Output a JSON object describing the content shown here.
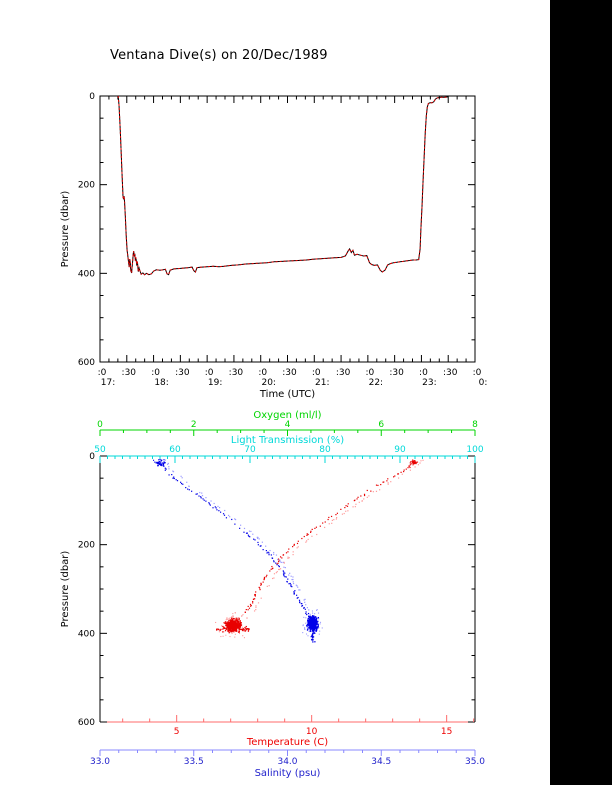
{
  "title": "Ventana Dive(s) on 20/Dec/1989",
  "colors": {
    "panel_black": "#000000",
    "frame_black": "#000000",
    "trace_red": "#e80000",
    "trace_red_light": "#ff9c9c",
    "trace_blue": "#0000e8",
    "trace_blue_light": "#9c9cff",
    "oxygen_green": "#00d400",
    "light_cyan": "#00d9d9",
    "temp_axis_red": "#ee0000",
    "temp_spine_red": "#ff6b6b",
    "salinity_blue": "#2222cc",
    "salinity_spine_blue": "#8888ff"
  },
  "layout": {
    "black_bar_left": 550,
    "black_bar_width": 62
  },
  "chart_data": [
    {
      "type": "line",
      "title": "Ventana Dive(s) on 20/Dec/1989",
      "xlabel": "Time (UTC)",
      "ylabel": "Pressure (dbar)",
      "xlim_hours": [
        17,
        24
      ],
      "ylim": [
        600,
        0
      ],
      "y_ticks": [
        0,
        200,
        400,
        600
      ],
      "y_minor_step": 50,
      "x_major_step_hours": 0.5,
      "x_minor_step_hours": 0.166667,
      "x_minute_labels": [
        ":0",
        ":30"
      ],
      "x_hour_labels": [
        "17:",
        "18:",
        "19:",
        "20:",
        "21:",
        "22:",
        "23:",
        "0:"
      ],
      "grid": false,
      "series": [
        {
          "name": "pressure_vs_time",
          "colors": [
            "#000000",
            "#e80000"
          ],
          "points_time_dbar": [
            [
              17.34,
              0
            ],
            [
              17.355,
              20
            ],
            [
              17.37,
              55
            ],
            [
              17.385,
              95
            ],
            [
              17.4,
              140
            ],
            [
              17.415,
              185
            ],
            [
              17.425,
              215
            ],
            [
              17.43,
              228
            ],
            [
              17.44,
              233
            ],
            [
              17.45,
              226
            ],
            [
              17.46,
              240
            ],
            [
              17.475,
              275
            ],
            [
              17.49,
              315
            ],
            [
              17.505,
              348
            ],
            [
              17.52,
              362
            ],
            [
              17.53,
              372
            ],
            [
              17.545,
              386
            ],
            [
              17.555,
              368
            ],
            [
              17.565,
              376
            ],
            [
              17.575,
              394
            ],
            [
              17.59,
              399
            ],
            [
              17.6,
              386
            ],
            [
              17.61,
              372
            ],
            [
              17.62,
              356
            ],
            [
              17.63,
              350
            ],
            [
              17.64,
              362
            ],
            [
              17.65,
              356
            ],
            [
              17.66,
              372
            ],
            [
              17.67,
              364
            ],
            [
              17.685,
              380
            ],
            [
              17.7,
              376
            ],
            [
              17.715,
              396
            ],
            [
              17.73,
              388
            ],
            [
              17.75,
              396
            ],
            [
              17.77,
              402
            ],
            [
              17.8,
              399
            ],
            [
              17.83,
              403
            ],
            [
              17.87,
              400
            ],
            [
              17.91,
              403
            ],
            [
              17.96,
              401
            ],
            [
              18.0,
              395
            ],
            [
              18.05,
              392
            ],
            [
              18.12,
              393
            ],
            [
              18.18,
              392
            ],
            [
              18.22,
              391
            ],
            [
              18.25,
              401
            ],
            [
              18.28,
              403
            ],
            [
              18.31,
              393
            ],
            [
              18.38,
              390
            ],
            [
              18.48,
              389
            ],
            [
              18.58,
              388
            ],
            [
              18.66,
              387
            ],
            [
              18.72,
              386
            ],
            [
              18.75,
              394
            ],
            [
              18.78,
              397
            ],
            [
              18.81,
              387
            ],
            [
              18.9,
              386
            ],
            [
              19.0,
              385
            ],
            [
              19.12,
              384
            ],
            [
              19.22,
              385
            ],
            [
              19.32,
              384
            ],
            [
              19.45,
              382
            ],
            [
              19.58,
              381
            ],
            [
              19.72,
              379
            ],
            [
              19.85,
              378
            ],
            [
              20.0,
              377
            ],
            [
              20.12,
              376
            ],
            [
              20.25,
              374
            ],
            [
              20.4,
              373
            ],
            [
              20.55,
              372
            ],
            [
              20.7,
              371
            ],
            [
              20.85,
              370
            ],
            [
              21.0,
              368
            ],
            [
              21.12,
              367
            ],
            [
              21.25,
              366
            ],
            [
              21.38,
              365
            ],
            [
              21.5,
              364
            ],
            [
              21.58,
              361
            ],
            [
              21.63,
              350
            ],
            [
              21.66,
              345
            ],
            [
              21.69,
              353
            ],
            [
              21.72,
              348
            ],
            [
              21.75,
              359
            ],
            [
              21.8,
              357
            ],
            [
              21.86,
              359
            ],
            [
              21.92,
              361
            ],
            [
              21.98,
              360
            ],
            [
              22.03,
              376
            ],
            [
              22.07,
              380
            ],
            [
              22.12,
              382
            ],
            [
              22.18,
              381
            ],
            [
              22.23,
              393
            ],
            [
              22.27,
              397
            ],
            [
              22.32,
              393
            ],
            [
              22.37,
              381
            ],
            [
              22.42,
              378
            ],
            [
              22.48,
              376
            ],
            [
              22.54,
              375
            ],
            [
              22.6,
              374
            ],
            [
              22.66,
              373
            ],
            [
              22.72,
              372
            ],
            [
              22.78,
              371
            ],
            [
              22.84,
              370
            ],
            [
              22.9,
              370
            ],
            [
              22.95,
              369
            ],
            [
              22.975,
              345
            ],
            [
              22.99,
              300
            ],
            [
              23.01,
              250
            ],
            [
              23.03,
              195
            ],
            [
              23.05,
              140
            ],
            [
              23.07,
              85
            ],
            [
              23.09,
              45
            ],
            [
              23.11,
              25
            ],
            [
              23.13,
              17
            ],
            [
              23.16,
              15
            ],
            [
              23.2,
              15
            ],
            [
              23.23,
              13
            ],
            [
              23.26,
              7
            ],
            [
              23.3,
              4
            ],
            [
              23.36,
              3
            ],
            [
              23.44,
              3
            ],
            [
              23.5,
              2
            ]
          ]
        }
      ]
    },
    {
      "type": "scatter",
      "ylabel": "Pressure (dbar)",
      "ylim": [
        600,
        0
      ],
      "y_ticks": [
        0,
        200,
        400,
        600
      ],
      "y_minor_step": 50,
      "grid": false,
      "x_axes": {
        "oxygen": {
          "label": "Oxygen (ml/l)",
          "position": "top-outer",
          "tick_labels": [
            "0",
            "2",
            "4",
            "6",
            "8"
          ],
          "tick_values": [
            0,
            2,
            4,
            6,
            8
          ],
          "lim": [
            0,
            8
          ],
          "minor_step": 0.5,
          "color": "#00d400"
        },
        "light_transmission": {
          "label": "Light Transmission (%)",
          "position": "top-spine",
          "tick_labels": [
            "50",
            "60",
            "70",
            "80",
            "90",
            "100"
          ],
          "tick_values": [
            50,
            60,
            70,
            80,
            90,
            100
          ],
          "lim": [
            50,
            100
          ],
          "minor_step": 1,
          "color": "#00d9d9"
        },
        "temperature": {
          "label": "Temperature (C)",
          "position": "bottom-spine",
          "tick_labels": [
            "5",
            "10",
            "15"
          ],
          "tick_values": [
            5,
            10,
            15
          ],
          "lim": [
            2.16,
            16.05
          ],
          "minor_step": 1,
          "color": "#ee0000",
          "spine_color": "#ff6b6b"
        },
        "salinity": {
          "label": "Salinity (psu)",
          "position": "bottom-outer",
          "tick_labels": [
            "33.0",
            "33.5",
            "34.0",
            "34.5",
            "35.0"
          ],
          "tick_values": [
            33,
            33.5,
            34,
            34.5,
            35
          ],
          "lim": [
            33,
            35
          ],
          "minor_step": 0.1,
          "color": "#2222cc",
          "spine_color": "#8888ff"
        }
      },
      "series": [
        {
          "name": "temperature_profile",
          "axis": "temperature",
          "color": "#e80000",
          "light_color": "#ff9c9c",
          "upcast_offset": 0.28,
          "profile_value_dbar": [
            [
              13.85,
              8
            ],
            [
              13.7,
              16
            ],
            [
              13.6,
              25
            ],
            [
              13.3,
              36
            ],
            [
              13.0,
              46
            ],
            [
              12.7,
              57
            ],
            [
              12.4,
              68
            ],
            [
              12.1,
              80
            ],
            [
              11.8,
              92
            ],
            [
              11.5,
              104
            ],
            [
              11.2,
              117
            ],
            [
              10.9,
              130
            ],
            [
              10.6,
              143
            ],
            [
              10.3,
              157
            ],
            [
              10.0,
              170
            ],
            [
              9.7,
              184
            ],
            [
              9.4,
              199
            ],
            [
              9.1,
              214
            ],
            [
              8.85,
              230
            ],
            [
              8.6,
              247
            ],
            [
              8.4,
              264
            ],
            [
              8.2,
              282
            ],
            [
              8.05,
              300
            ],
            [
              7.9,
              318
            ],
            [
              7.75,
              334
            ],
            [
              7.6,
              348
            ],
            [
              7.45,
              360
            ]
          ],
          "bottom_cluster": {
            "value": 7.1,
            "dbar": 382,
            "sigma_value": 0.3,
            "sigma_dbar": 16,
            "count": 420,
            "arm": true
          },
          "surface_blob": {
            "value": 13.8,
            "dbar": 14,
            "sigma_value": 0.12,
            "sigma_dbar": 6,
            "count": 45
          }
        },
        {
          "name": "salinity_profile",
          "axis": "salinity",
          "color": "#0000e8",
          "light_color": "#9c9cff",
          "upcast_offset": 0.03,
          "profile_value_dbar": [
            [
              33.32,
              8
            ],
            [
              33.33,
              16
            ],
            [
              33.34,
              25
            ],
            [
              33.36,
              36
            ],
            [
              33.39,
              46
            ],
            [
              33.42,
              57
            ],
            [
              33.45,
              68
            ],
            [
              33.49,
              80
            ],
            [
              33.53,
              92
            ],
            [
              33.57,
              104
            ],
            [
              33.61,
              117
            ],
            [
              33.65,
              130
            ],
            [
              33.69,
              143
            ],
            [
              33.73,
              157
            ],
            [
              33.77,
              170
            ],
            [
              33.81,
              184
            ],
            [
              33.85,
              199
            ],
            [
              33.89,
              214
            ],
            [
              33.92,
              230
            ],
            [
              33.95,
              247
            ],
            [
              33.98,
              264
            ],
            [
              34.0,
              282
            ],
            [
              34.03,
              300
            ],
            [
              34.05,
              318
            ],
            [
              34.07,
              334
            ],
            [
              34.09,
              348
            ],
            [
              34.11,
              360
            ]
          ],
          "bottom_cluster": {
            "value": 34.135,
            "dbar": 378,
            "sigma_value": 0.03,
            "sigma_dbar": 17,
            "count": 420,
            "tail": true
          },
          "surface_blob": {
            "value": 33.32,
            "dbar": 16,
            "sigma_value": 0.035,
            "sigma_dbar": 8,
            "count": 50
          }
        }
      ]
    }
  ]
}
